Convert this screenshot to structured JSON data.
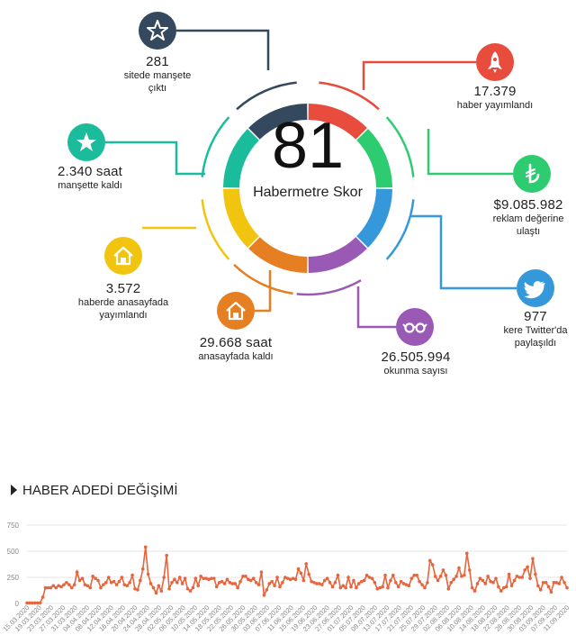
{
  "score": {
    "value": "81",
    "label": "Habermetre Skor"
  },
  "ring_colors": [
    "#e74c3c",
    "#2ecc71",
    "#3498db",
    "#9b59b6",
    "#e67e22",
    "#f1c40f",
    "#1abc9c",
    "#34495e"
  ],
  "stats": [
    {
      "id": "manset",
      "icon": "star-outline-icon",
      "color": "#34495e",
      "number": "281",
      "label1": "sitede manşete",
      "label2": "çıktı"
    },
    {
      "id": "manset-saat",
      "icon": "star-icon",
      "color": "#1abc9c",
      "number": "2.340 saat",
      "label1": "manşette kaldı",
      "label2": ""
    },
    {
      "id": "anasayfa",
      "icon": "home-icon",
      "color": "#f1c40f",
      "number": "3.572",
      "label1": "haberde anasayfada",
      "label2": "yayımlandı"
    },
    {
      "id": "anasayfa-saat",
      "icon": "home-icon",
      "color": "#e67e22",
      "number": "29.668 saat",
      "label1": "anasayfada kaldı",
      "label2": ""
    },
    {
      "id": "okunma",
      "icon": "glasses-icon",
      "color": "#9b59b6",
      "number": "26.505.994",
      "label1": "okunma sayısı",
      "label2": ""
    },
    {
      "id": "twitter",
      "icon": "twitter-icon",
      "color": "#3498db",
      "number": "977",
      "label1": "kere Twitter'da",
      "label2": "paylaşıldı"
    },
    {
      "id": "reklam",
      "icon": "lira-icon",
      "color": "#2ecc71",
      "number": "$9.085.982",
      "label1": "reklam değerine",
      "label2": "ulaştı"
    },
    {
      "id": "haber",
      "icon": "rocket-icon",
      "color": "#e74c3c",
      "number": "17.379",
      "label1": "haber yayımlandı",
      "label2": ""
    }
  ],
  "section": {
    "title": "HABER ADEDİ DEĞİŞİMİ"
  },
  "chart_data": {
    "type": "line",
    "title": "HABER ADEDİ DEĞİŞİMİ",
    "color": "#e8643c",
    "ylim": [
      0,
      750
    ],
    "yticks": [
      0,
      250,
      500,
      750
    ],
    "grid": true,
    "xticklabels": [
      "15.03.2020",
      "19.03.2020",
      "23.03.2020",
      "27.03.2020",
      "31.03.2020",
      "04.04.2020",
      "08.04.2020",
      "12.04.2020",
      "16.04.2020",
      "20.04.2020",
      "24.04.2020",
      "28.04.2020",
      "02.05.2020",
      "06.05.2020",
      "10.05.2020",
      "14.05.2020",
      "18.05.2020",
      "22.05.2020",
      "26.05.2020",
      "30.05.2020",
      "03.06.2020",
      "07.06.2020",
      "11.06.2020",
      "15.06.2020",
      "19.06.2020",
      "23.06.2020",
      "27.06.2020",
      "01.07.2020",
      "05.07.2020",
      "09.07.2020",
      "13.07.2020",
      "17.07.2020",
      "21.07.2020",
      "25.07.2020",
      "29.07.2020",
      "02.08.2020",
      "06.08.2020",
      "10.08.2020",
      "14.08.2020",
      "18.08.2020",
      "22.08.2020",
      "26.08.2020",
      "30.08.2020",
      "03.09.2020",
      "07.09.2020",
      "11.09.2020"
    ],
    "values": [
      5,
      5,
      5,
      5,
      5,
      5,
      60,
      150,
      150,
      150,
      170,
      150,
      170,
      160,
      180,
      200,
      180,
      150,
      180,
      300,
      220,
      240,
      180,
      170,
      150,
      260,
      240,
      220,
      150,
      180,
      200,
      250,
      200,
      210,
      180,
      210,
      250,
      180,
      170,
      200,
      270,
      140,
      130,
      220,
      330,
      540,
      280,
      190,
      150,
      100,
      170,
      120,
      250,
      460,
      140,
      200,
      230,
      200,
      250,
      190,
      240,
      140,
      120,
      150,
      240,
      170,
      260,
      240,
      240,
      230,
      240,
      240,
      160,
      200,
      210,
      190,
      230,
      200,
      190,
      190,
      150,
      210,
      260,
      260,
      230,
      220,
      240,
      200,
      180,
      300,
      80,
      130,
      190,
      210,
      170,
      250,
      160,
      200,
      250,
      240,
      230,
      240,
      230,
      330,
      290,
      220,
      380,
      280,
      210,
      200,
      190,
      190,
      180,
      220,
      240,
      200,
      160,
      200,
      270,
      150,
      170,
      150,
      250,
      160,
      220,
      150,
      190,
      210,
      220,
      270,
      250,
      240,
      200,
      140,
      150,
      160,
      270,
      150,
      220,
      270,
      200,
      160,
      210,
      190,
      180,
      170,
      240,
      270,
      270,
      210,
      180,
      150,
      200,
      410,
      370,
      260,
      220,
      260,
      320,
      270,
      140,
      200,
      230,
      260,
      340,
      260,
      270,
      480,
      320,
      150,
      120,
      190,
      240,
      220,
      190,
      260,
      210,
      200,
      240,
      160,
      120,
      150,
      160,
      280,
      170,
      220,
      260,
      250,
      250,
      320,
      350,
      240,
      430,
      280,
      170,
      130,
      200,
      200,
      160,
      110,
      200,
      200,
      190,
      250,
      200,
      150
    ]
  }
}
